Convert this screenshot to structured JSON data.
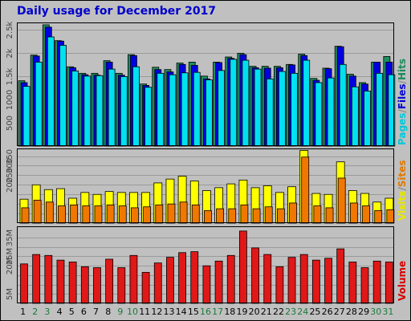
{
  "title": "Daily usage for December 2017",
  "colors": {
    "hits": "#1f8f5f",
    "files": "#0000e0",
    "pages": "#00e0f0",
    "visits": "#ffff00",
    "sites": "#f07800",
    "volume": "#e01818",
    "panel_bg": "#c0c0c0",
    "grid": "#9a9a9a",
    "weekend_label": "#1a7a3a"
  },
  "legend": {
    "top": {
      "pages": "Pages",
      "files": "Files",
      "hits": "Hits",
      "sep": "/"
    },
    "middle": {
      "visits": "Visits",
      "sites": "Sites",
      "sep": "/"
    },
    "bottom": {
      "volume": "Volume"
    }
  },
  "chart_data": [
    {
      "type": "bar",
      "title": "Daily usage for December 2017",
      "categories": [
        "1",
        "2",
        "3",
        "4",
        "5",
        "6",
        "7",
        "8",
        "9",
        "10",
        "11",
        "12",
        "13",
        "14",
        "15",
        "16",
        "17",
        "18",
        "19",
        "20",
        "21",
        "22",
        "23",
        "24",
        "25",
        "26",
        "27",
        "28",
        "29",
        "30",
        "31"
      ],
      "weekend_days": [
        "2",
        "3",
        "9",
        "10",
        "16",
        "17",
        "23",
        "24",
        "30",
        "31"
      ],
      "ylim": [
        0,
        2650
      ],
      "yticks": [
        500,
        1000,
        1500,
        2000,
        2500
      ],
      "ytick_labels": [
        "500",
        "1000",
        "1.5k",
        "2k",
        "2.5k"
      ],
      "series": [
        {
          "name": "Hits",
          "values": [
            1400,
            1950,
            2600,
            2260,
            1700,
            1560,
            1560,
            1830,
            1560,
            1960,
            1330,
            1690,
            1640,
            1780,
            1800,
            1500,
            1800,
            1910,
            1990,
            1710,
            1710,
            1710,
            1750,
            1970,
            1450,
            1670,
            2140,
            1540,
            1360,
            1800,
            1920
          ]
        },
        {
          "name": "Files",
          "values": [
            1360,
            1930,
            2550,
            2250,
            1680,
            1530,
            1520,
            1800,
            1520,
            1940,
            1300,
            1640,
            1590,
            1750,
            1730,
            1440,
            1790,
            1880,
            1960,
            1680,
            1670,
            1680,
            1740,
            1940,
            1410,
            1660,
            2130,
            1500,
            1330,
            1800,
            1800
          ]
        },
        {
          "name": "Pages",
          "values": [
            1280,
            1800,
            2340,
            2160,
            1610,
            1500,
            1510,
            1650,
            1490,
            1700,
            1260,
            1560,
            1530,
            1570,
            1580,
            1420,
            1620,
            1860,
            1840,
            1650,
            1440,
            1600,
            1560,
            1840,
            1360,
            1460,
            1750,
            1270,
            1180,
            1560,
            1530
          ]
        }
      ]
    },
    {
      "type": "bar",
      "ylim": [
        0,
        390
      ],
      "yticks": [
        50,
        100,
        150,
        200,
        250,
        300,
        350
      ],
      "ytick_labels": [
        "",
        "",
        "",
        "200",
        "250",
        "300",
        "350"
      ],
      "series": [
        {
          "name": "Visits",
          "values": [
            125,
            200,
            175,
            180,
            130,
            160,
            150,
            165,
            160,
            160,
            160,
            210,
            230,
            245,
            220,
            170,
            185,
            205,
            225,
            185,
            195,
            160,
            190,
            380,
            155,
            150,
            320,
            170,
            155,
            110,
            130
          ]
        },
        {
          "name": "Sites",
          "values": [
            80,
            120,
            110,
            90,
            95,
            90,
            90,
            95,
            90,
            80,
            85,
            95,
            100,
            110,
            95,
            65,
            75,
            75,
            95,
            75,
            85,
            75,
            105,
            345,
            90,
            80,
            235,
            105,
            90,
            65,
            70
          ]
        }
      ]
    },
    {
      "type": "bar",
      "ylim": [
        0,
        41000000
      ],
      "yticks": [
        5000000,
        10000000,
        15000000,
        20000000,
        25000000,
        30000000,
        35000000
      ],
      "ytick_labels": [
        "5M",
        "",
        "",
        "20M",
        "25M",
        "",
        "35M"
      ],
      "series": [
        {
          "name": "Volume",
          "values": [
            21000000,
            26000000,
            25500000,
            23000000,
            22000000,
            19500000,
            19000000,
            23500000,
            19000000,
            25500000,
            16500000,
            21500000,
            24500000,
            27000000,
            27500000,
            20000000,
            22500000,
            25500000,
            38500000,
            29500000,
            26000000,
            19500000,
            24500000,
            26000000,
            23000000,
            24000000,
            29000000,
            22000000,
            19000000,
            22500000,
            22000000
          ]
        }
      ]
    }
  ]
}
